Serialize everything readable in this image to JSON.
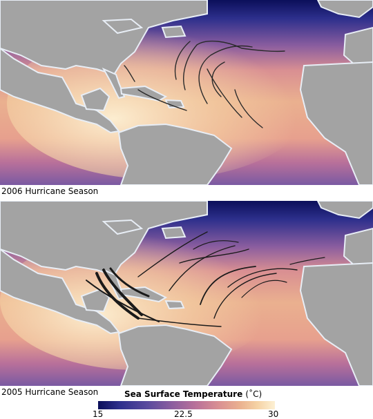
{
  "panels": [
    {
      "caption": "2006 Hurricane Season"
    },
    {
      "caption": "2005 Hurricane Season"
    }
  ],
  "legend": {
    "title": "Sea Surface Temperature",
    "unit": "(˚C)",
    "min_label": "15",
    "mid_label": "22.5",
    "max_label": "30"
  },
  "colors": {
    "land": "#a3a3a3",
    "coast": "#e8eef6",
    "cold": "#0b0f5a",
    "warm": "#fdf1d4",
    "track": "#2a2a2a"
  }
}
